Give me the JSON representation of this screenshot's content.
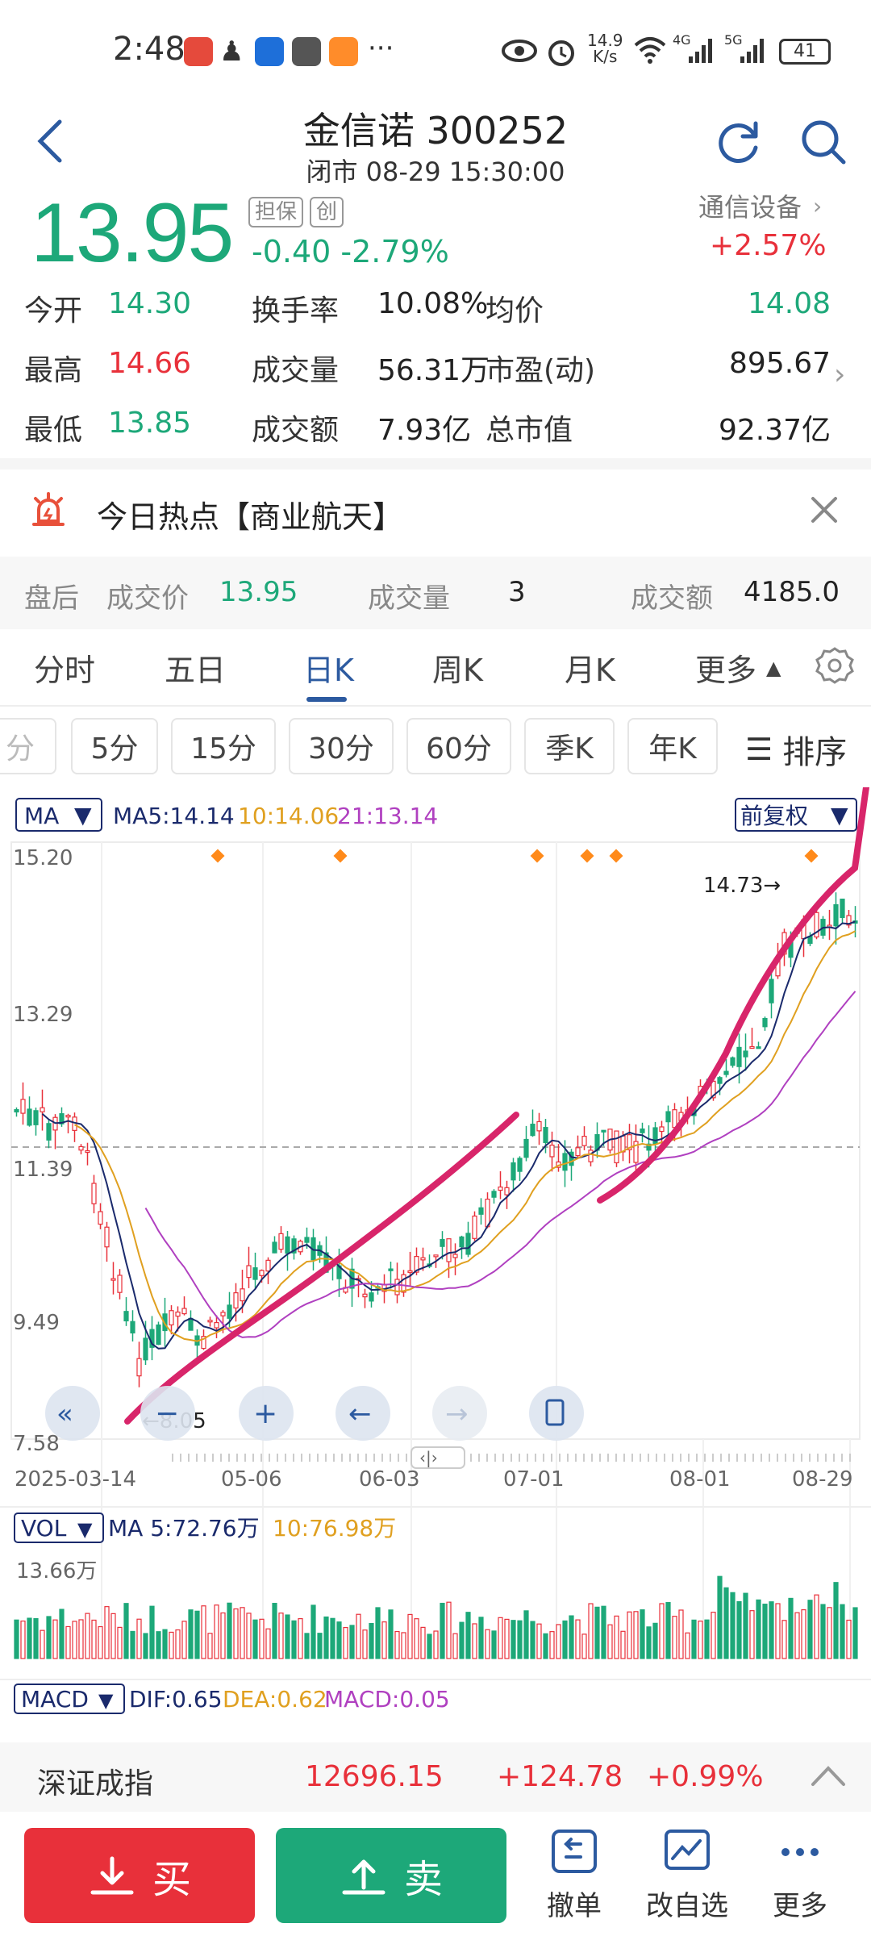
{
  "status_bar": {
    "time": "2:48",
    "net_speed_top": "14.9",
    "net_speed_bottom": "K/s",
    "sig1": "4G",
    "sig2": "5G",
    "battery": "41",
    "more": "···"
  },
  "header": {
    "title": "金信诺 300252",
    "subtitle": "闭市 08-29 15:30:00"
  },
  "quote": {
    "price": "13.95",
    "tag1": "担保",
    "tag2": "创",
    "change": "-0.40  -2.79%",
    "sector": "通信设备",
    "sector_change": "+2.57%",
    "rows": [
      [
        {
          "label": "今开",
          "value": "14.30",
          "color": "green"
        },
        {
          "label": "换手率",
          "value": "10.08%",
          "color": "dark"
        },
        {
          "label": "均价",
          "value": "14.08",
          "color": "green"
        }
      ],
      [
        {
          "label": "最高",
          "value": "14.66",
          "color": "red"
        },
        {
          "label": "成交量",
          "value": "56.31万",
          "color": "dark"
        },
        {
          "label": "市盈(动)",
          "value": "895.67",
          "color": "dark"
        }
      ],
      [
        {
          "label": "最低",
          "value": "13.85",
          "color": "green"
        },
        {
          "label": "成交额",
          "value": "7.93亿",
          "color": "dark"
        },
        {
          "label": "总市值",
          "value": "92.37亿",
          "color": "dark"
        }
      ]
    ]
  },
  "hot_topic": "今日热点【商业航天】",
  "after_hours": {
    "label": "盘后",
    "price_label": "成交价",
    "price": "13.95",
    "vol_label": "成交量",
    "vol": "3",
    "amt_label": "成交额",
    "amt": "4185.0"
  },
  "tabs": [
    "分时",
    "五日",
    "日K",
    "周K",
    "月K",
    "更多"
  ],
  "intervals": [
    "5分",
    "15分",
    "30分",
    "60分",
    "季K",
    "年K"
  ],
  "sort_label": "排序",
  "chart": {
    "ma_selector": "MA",
    "ma5": "MA5:14.14",
    "ma10": "10:14.06",
    "ma21": "21:13.14",
    "adjust": "前复权",
    "y_ticks": [
      "15.20",
      "13.29",
      "11.39",
      "9.49",
      "7.58"
    ],
    "x_ticks": [
      "2025-03-14",
      "05-06",
      "06-03",
      "07-01",
      "08-01",
      "08-29"
    ],
    "high_label": "14.73→",
    "low_label": "←8.05",
    "vol_selector": "VOL",
    "vol_ma5": "MA 5:72.76万",
    "vol_ma10": "10:76.98万",
    "vol_tick": "13.66万",
    "macd_selector": "MACD",
    "dif": "DIF:0.65",
    "dea": "DEA:0.62",
    "macd": "MACD:0.05",
    "colors": {
      "up": "#e8303a",
      "down": "#1da879",
      "ma5": "#1a2a6c",
      "ma10": "#e0a020",
      "ma21": "#b040c0",
      "annotation": "#d8256a"
    }
  },
  "index_bar": {
    "name": "深证成指",
    "value": "12696.15",
    "change": "+124.78",
    "pct": "+0.99%"
  },
  "bottom": {
    "buy": "买",
    "sell": "卖",
    "cancel": "撤单",
    "watch": "改自选",
    "more": "更多"
  }
}
